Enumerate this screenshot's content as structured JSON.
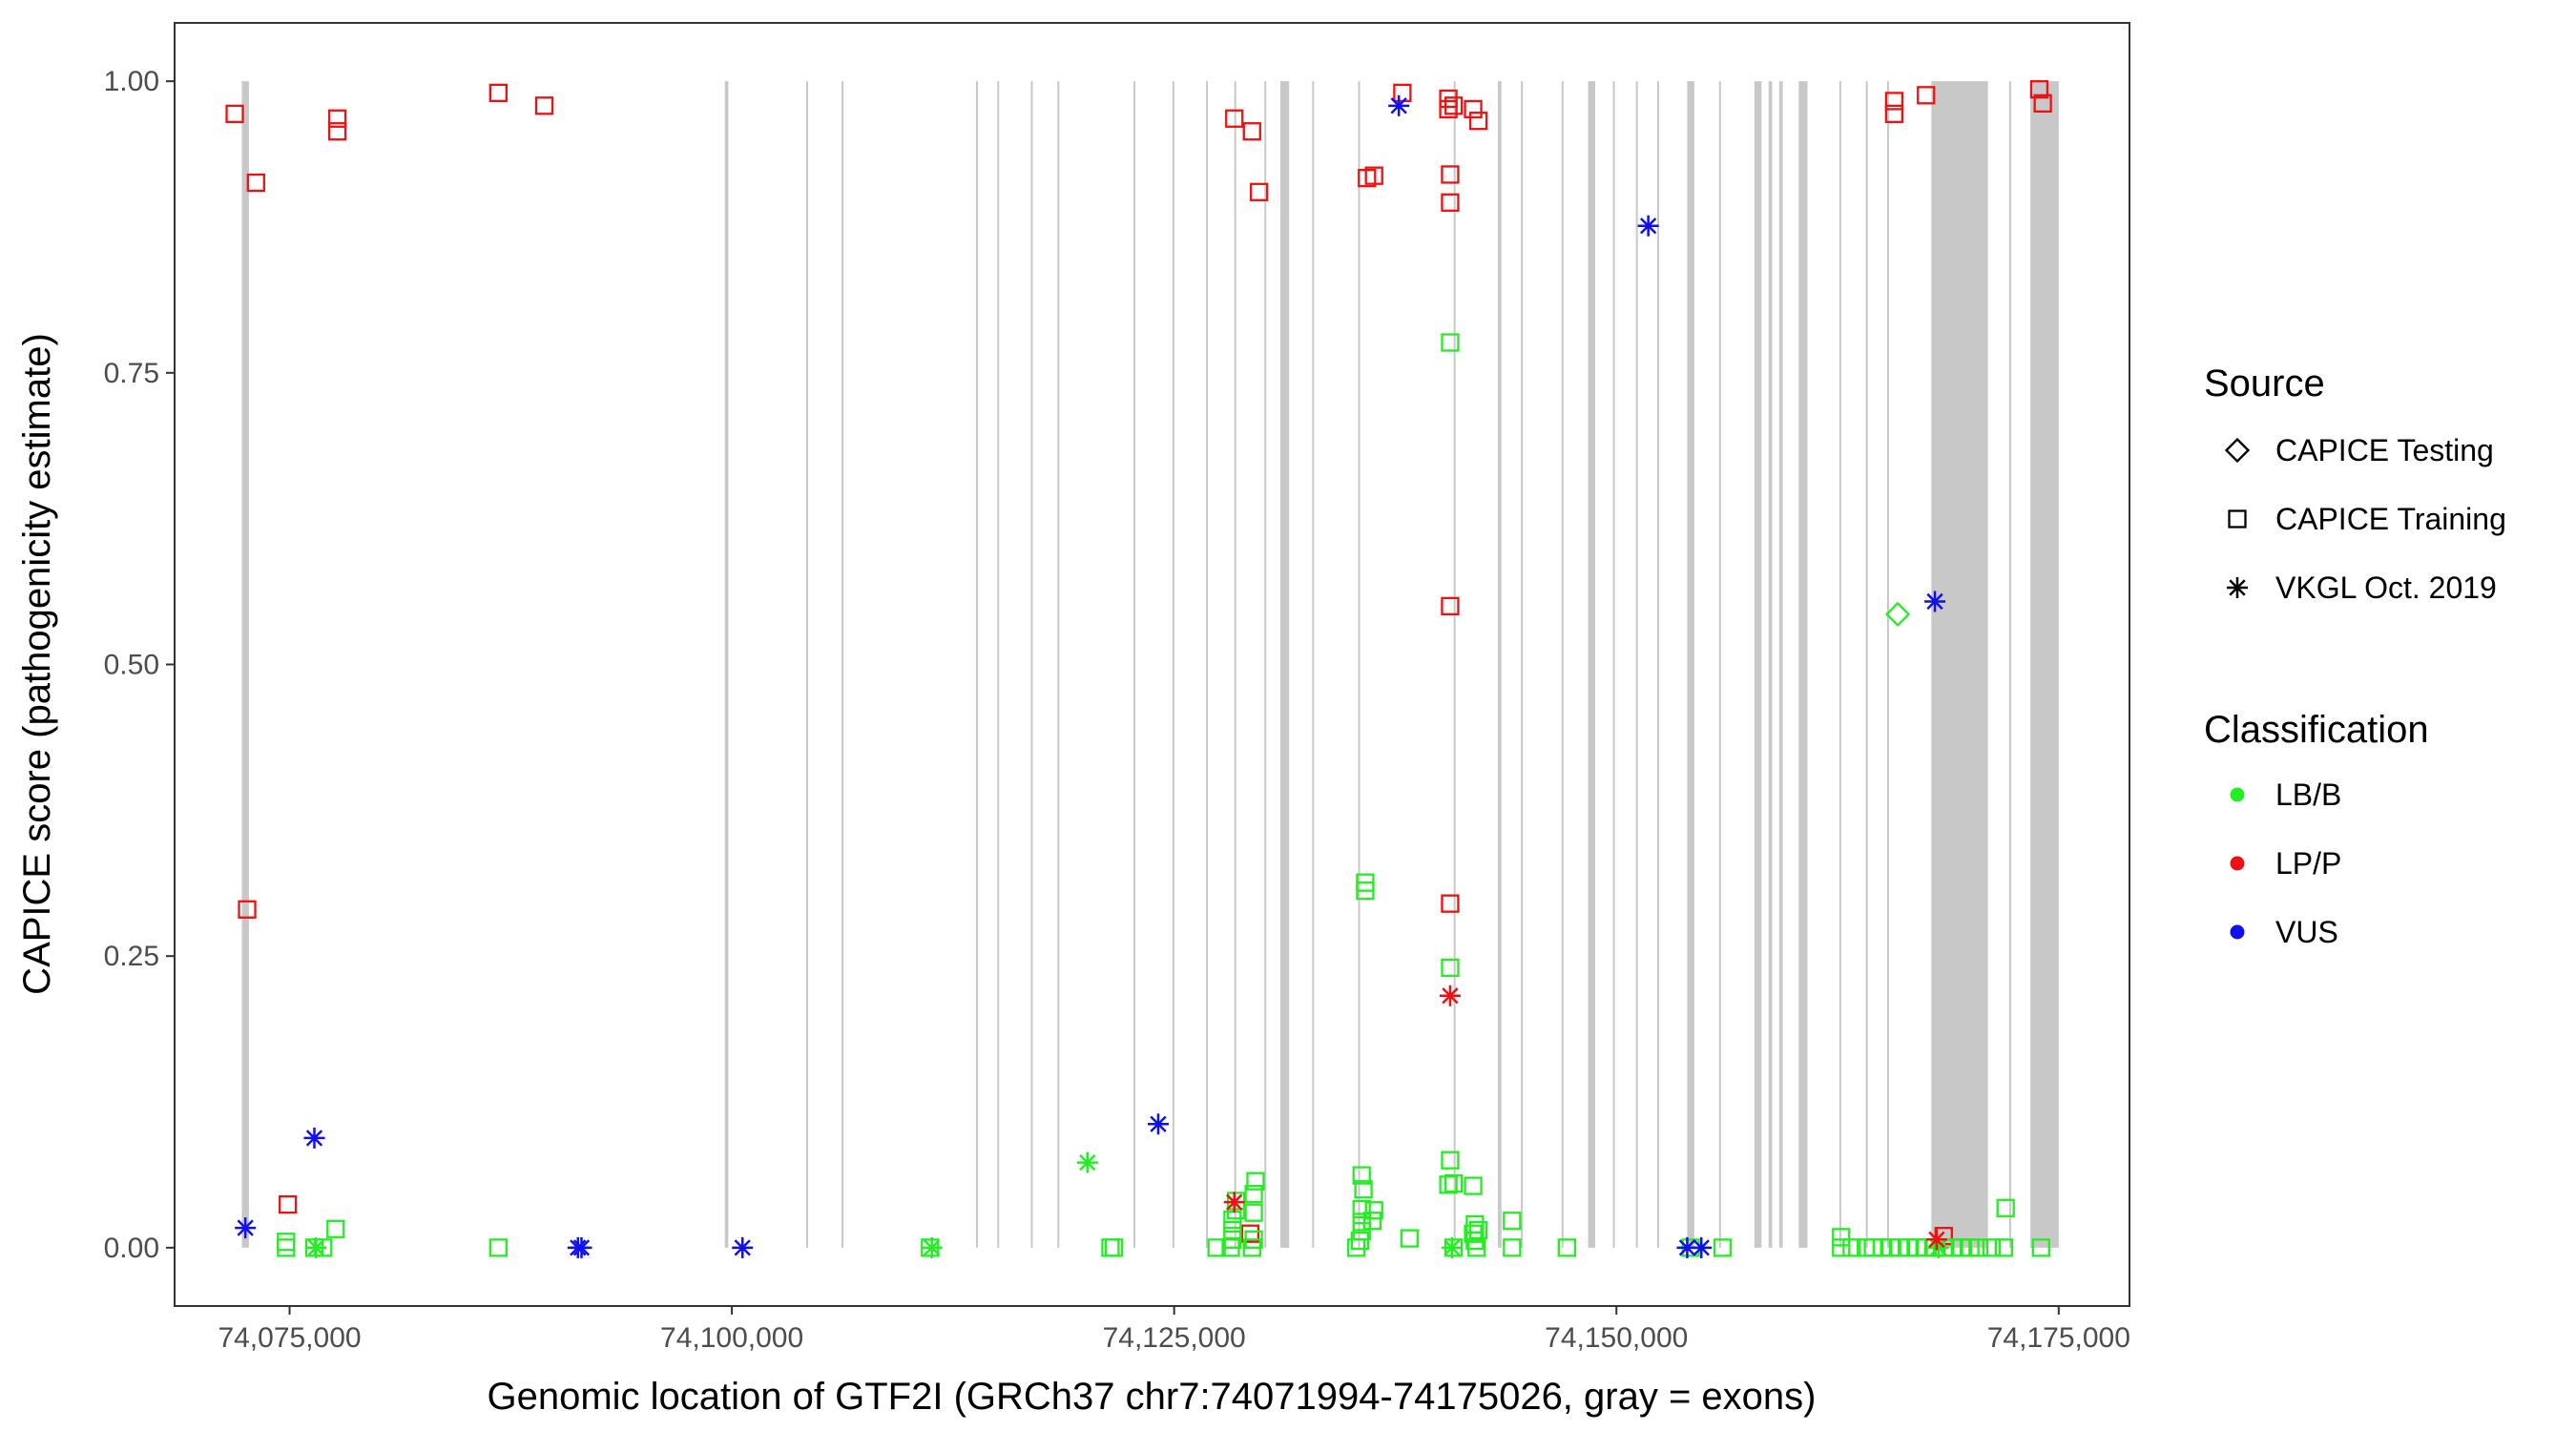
{
  "chart_data": {
    "type": "scatter",
    "xlabel": "Genomic location of GTF2I (GRCh37 chr7:74071994-74175026, gray = exons)",
    "ylabel": "CAPICE score (pathogenicity estimate)",
    "xlim": [
      68500,
      179000
    ],
    "ylim": [
      -0.05,
      1.05
    ],
    "x_offset": 74000000,
    "x_ticks": [
      {
        "value": 75000,
        "label": "74,075,000"
      },
      {
        "value": 100000,
        "label": "74,100,000"
      },
      {
        "value": 125000,
        "label": "74,125,000"
      },
      {
        "value": 150000,
        "label": "74,150,000"
      },
      {
        "value": 175000,
        "label": "74,175,000"
      }
    ],
    "y_ticks": [
      {
        "value": 0.0,
        "label": "0.00"
      },
      {
        "value": 0.25,
        "label": "0.25"
      },
      {
        "value": 0.5,
        "label": "0.50"
      },
      {
        "value": 0.75,
        "label": "0.75"
      },
      {
        "value": 1.0,
        "label": "1.00"
      }
    ],
    "grid": false,
    "exons": [
      [
        72300,
        72700
      ],
      [
        99600,
        99800
      ],
      [
        104200,
        104300
      ],
      [
        106200,
        106300
      ],
      [
        113800,
        113900
      ],
      [
        115000,
        115100
      ],
      [
        116900,
        117000
      ],
      [
        118400,
        118500
      ],
      [
        122700,
        122800
      ],
      [
        124900,
        125000
      ],
      [
        126800,
        126900
      ],
      [
        128400,
        128500
      ],
      [
        130100,
        130200
      ],
      [
        131000,
        131500
      ],
      [
        132800,
        132900
      ],
      [
        135400,
        135500
      ],
      [
        140800,
        140900
      ],
      [
        143300,
        143500
      ],
      [
        144600,
        144700
      ],
      [
        146900,
        147000
      ],
      [
        148400,
        148800
      ],
      [
        149800,
        149900
      ],
      [
        151100,
        151200
      ],
      [
        152300,
        152400
      ],
      [
        154000,
        154400
      ],
      [
        155800,
        155900
      ],
      [
        157800,
        158200
      ],
      [
        158600,
        158800
      ],
      [
        159200,
        159400
      ],
      [
        160300,
        160800
      ],
      [
        162600,
        162700
      ],
      [
        164100,
        164200
      ],
      [
        165300,
        165400
      ],
      [
        167800,
        171000
      ],
      [
        172200,
        172300
      ],
      [
        173400,
        175000
      ]
    ],
    "legend": {
      "position": "right",
      "source_title": "Source",
      "source_entries": [
        {
          "label": "CAPICE Testing",
          "shape": "diamond"
        },
        {
          "label": "CAPICE Training",
          "shape": "square"
        },
        {
          "label": "VKGL Oct. 2019",
          "shape": "asterisk"
        }
      ],
      "class_title": "Classification",
      "class_entries": [
        {
          "label": "LB/B",
          "color": "#22ee22"
        },
        {
          "label": "LP/P",
          "color": "#ee1111"
        },
        {
          "label": "VUS",
          "color": "#1010ee"
        }
      ]
    },
    "series": [
      {
        "source": "CAPICE Training",
        "classification": "LP/P",
        "points": [
          [
            71900,
            0.972
          ],
          [
            72600,
            0.29
          ],
          [
            73100,
            0.913
          ],
          [
            74900,
            0.037
          ],
          [
            77700,
            0.968
          ],
          [
            77700,
            0.957
          ],
          [
            86800,
            0.99
          ],
          [
            89400,
            0.979
          ],
          [
            128400,
            0.968
          ],
          [
            129400,
            0.957
          ],
          [
            129800,
            0.905
          ],
          [
            129300,
            0.012
          ],
          [
            137900,
            0.99
          ],
          [
            135900,
            0.917
          ],
          [
            136300,
            0.919
          ],
          [
            140500,
            0.985
          ],
          [
            140500,
            0.976
          ],
          [
            140800,
            0.979
          ],
          [
            140600,
            0.92
          ],
          [
            140600,
            0.896
          ],
          [
            140600,
            0.55
          ],
          [
            140600,
            0.295
          ],
          [
            141900,
            0.976
          ],
          [
            142200,
            0.966
          ],
          [
            165700,
            0.983
          ],
          [
            165700,
            0.972
          ],
          [
            167500,
            0.988
          ],
          [
            168500,
            0.01
          ],
          [
            173900,
            0.993
          ],
          [
            174100,
            0.981
          ]
        ]
      },
      {
        "source": "CAPICE Training",
        "classification": "LB/B",
        "points": [
          [
            74800,
            0.005
          ],
          [
            74800,
            0.0
          ],
          [
            76400,
            0.0
          ],
          [
            76900,
            0.0
          ],
          [
            77600,
            0.016
          ],
          [
            86800,
            0.0
          ],
          [
            111200,
            0.0
          ],
          [
            121400,
            0.0
          ],
          [
            121600,
            0.0
          ],
          [
            127400,
            0.0
          ],
          [
            128200,
            0.0
          ],
          [
            128300,
            0.007
          ],
          [
            128300,
            0.015
          ],
          [
            128300,
            0.024
          ],
          [
            128500,
            0.032
          ],
          [
            128500,
            0.04
          ],
          [
            129400,
            0.0
          ],
          [
            129500,
            0.007
          ],
          [
            129500,
            0.03
          ],
          [
            129500,
            0.046
          ],
          [
            129600,
            0.057
          ],
          [
            135300,
            0.0
          ],
          [
            135500,
            0.006
          ],
          [
            135600,
            0.014
          ],
          [
            135600,
            0.022
          ],
          [
            135600,
            0.033
          ],
          [
            135700,
            0.05
          ],
          [
            135600,
            0.062
          ],
          [
            135800,
            0.306
          ],
          [
            135800,
            0.313
          ],
          [
            136200,
            0.023
          ],
          [
            136300,
            0.032
          ],
          [
            138300,
            0.008
          ],
          [
            140600,
            0.776
          ],
          [
            140600,
            0.24
          ],
          [
            140600,
            0.075
          ],
          [
            140500,
            0.054
          ],
          [
            140800,
            0.055
          ],
          [
            140800,
            0.0
          ],
          [
            141900,
            0.053
          ],
          [
            142100,
            0.0
          ],
          [
            142000,
            0.006
          ],
          [
            141900,
            0.012
          ],
          [
            142000,
            0.02
          ],
          [
            142200,
            0.015
          ],
          [
            144100,
            0.0
          ],
          [
            144100,
            0.023
          ],
          [
            147200,
            0.0
          ],
          [
            154200,
            0.0
          ],
          [
            156000,
            0.0
          ],
          [
            162700,
            0.0
          ],
          [
            162700,
            0.009
          ],
          [
            163300,
            0.0
          ],
          [
            164100,
            0.0
          ],
          [
            164500,
            0.0
          ],
          [
            165000,
            0.0
          ],
          [
            165500,
            0.0
          ],
          [
            166000,
            0.0
          ],
          [
            166500,
            0.0
          ],
          [
            167000,
            0.0
          ],
          [
            167500,
            0.0
          ],
          [
            168000,
            0.0
          ],
          [
            168500,
            0.0
          ],
          [
            169000,
            0.0
          ],
          [
            169500,
            0.0
          ],
          [
            170000,
            0.0
          ],
          [
            170500,
            0.0
          ],
          [
            171200,
            0.0
          ],
          [
            171900,
            0.0
          ],
          [
            172000,
            0.034
          ],
          [
            174000,
            0.0
          ]
        ]
      },
      {
        "source": "CAPICE Testing",
        "classification": "LB/B",
        "points": [
          [
            165900,
            0.543
          ]
        ]
      },
      {
        "source": "VKGL Oct. 2019",
        "classification": "VUS",
        "points": [
          [
            72500,
            0.017
          ],
          [
            76400,
            0.094
          ],
          [
            91300,
            0.0
          ],
          [
            91500,
            0.0
          ],
          [
            100600,
            0.0
          ],
          [
            124100,
            0.106
          ],
          [
            137700,
            0.979
          ],
          [
            151800,
            0.876
          ],
          [
            154000,
            0.0
          ],
          [
            154800,
            0.0
          ],
          [
            168000,
            0.554
          ]
        ]
      },
      {
        "source": "VKGL Oct. 2019",
        "classification": "LB/B",
        "points": [
          [
            76500,
            0.0
          ],
          [
            111300,
            0.0
          ],
          [
            120100,
            0.073
          ],
          [
            140700,
            0.0
          ],
          [
            168200,
            0.0
          ]
        ]
      },
      {
        "source": "VKGL Oct. 2019",
        "classification": "LP/P",
        "points": [
          [
            128400,
            0.039
          ],
          [
            140600,
            0.216
          ],
          [
            168100,
            0.007
          ]
        ]
      }
    ]
  }
}
